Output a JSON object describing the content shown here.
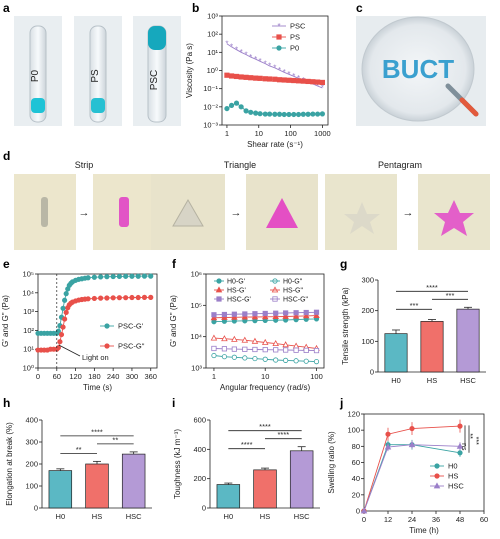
{
  "panel_labels": [
    "a",
    "b",
    "c",
    "d",
    "e",
    "f",
    "g",
    "h",
    "i",
    "j"
  ],
  "photo_a": {
    "vials": [
      "P0",
      "PS",
      "PSC"
    ]
  },
  "photo_c": {
    "text": "BUCT"
  },
  "photo_d": {
    "shapes": [
      "Strip",
      "Triangle",
      "Pentagram"
    ]
  },
  "chart_data": [
    {
      "panel": "b",
      "type": "line",
      "xlabel": "Shear rate (s⁻¹)",
      "ylabel": "Viscosity (Pa s)",
      "xscale": "log",
      "yscale": "log",
      "xlim": [
        0.7,
        1500
      ],
      "ylim": [
        0.001,
        1000
      ],
      "xticks": [
        1,
        10,
        100,
        1000
      ],
      "xtick_labels": [
        "1",
        "10",
        "100",
        "1000"
      ],
      "yticks": [
        0.001,
        0.01,
        0.1,
        1,
        10,
        100,
        1000
      ],
      "ytick_labels": [
        "10⁻³",
        "10⁻²",
        "10⁻¹",
        "10⁰",
        "10¹",
        "10²",
        "10³"
      ],
      "legend": "top-right",
      "series": [
        {
          "name": "PSC",
          "color": "#9b7fc9",
          "marker": "star",
          "x": [
            1,
            1.4,
            2,
            2.8,
            4,
            5.6,
            8,
            11,
            16,
            22,
            32,
            45,
            63,
            89,
            126,
            178,
            251,
            355,
            501,
            708,
            1000
          ],
          "y": [
            30,
            20,
            14,
            10,
            7.5,
            5.5,
            4.2,
            3.2,
            2.4,
            1.8,
            1.4,
            1.05,
            0.8,
            0.62,
            0.48,
            0.37,
            0.29,
            0.23,
            0.18,
            0.14,
            0.11
          ]
        },
        {
          "name": "PS",
          "color": "#e8504a",
          "marker": "square",
          "x": [
            1,
            1.4,
            2,
            2.8,
            4,
            5.6,
            8,
            11,
            16,
            22,
            32,
            45,
            63,
            89,
            126,
            178,
            251,
            355,
            501,
            708,
            1000
          ],
          "y": [
            0.55,
            0.5,
            0.47,
            0.44,
            0.42,
            0.4,
            0.38,
            0.37,
            0.35,
            0.34,
            0.33,
            0.31,
            0.3,
            0.29,
            0.28,
            0.27,
            0.26,
            0.25,
            0.24,
            0.23,
            0.22
          ]
        },
        {
          "name": "P0",
          "color": "#3aa3a3",
          "marker": "circle",
          "x": [
            1,
            1.4,
            2,
            2.8,
            4,
            5.6,
            8,
            11,
            16,
            22,
            32,
            45,
            63,
            89,
            126,
            178,
            251,
            355,
            501,
            708,
            1000
          ],
          "y": [
            0.008,
            0.012,
            0.016,
            0.01,
            0.006,
            0.005,
            0.0045,
            0.0042,
            0.004,
            0.004,
            0.0039,
            0.0039,
            0.0038,
            0.0038,
            0.0038,
            0.0038,
            0.0039,
            0.0039,
            0.004,
            0.004,
            0.0041
          ]
        }
      ]
    },
    {
      "panel": "e",
      "type": "line",
      "xlabel": "Time (s)",
      "ylabel": "G' and G\" (Pa)",
      "yscale": "log",
      "xlim": [
        0,
        380
      ],
      "ylim": [
        1,
        100000
      ],
      "xticks": [
        0,
        60,
        120,
        180,
        240,
        300,
        360
      ],
      "yticks": [
        1,
        10,
        100,
        1000,
        10000,
        100000
      ],
      "ytick_labels": [
        "10⁰",
        "10¹",
        "10²",
        "10³",
        "10⁴",
        "10⁵"
      ],
      "legend": "right",
      "annotation": "Light on",
      "annotation_x": 60,
      "series": [
        {
          "name": "PSC-G'",
          "color": "#3aa3a3",
          "marker": "circle",
          "x": [
            0,
            10,
            20,
            30,
            40,
            50,
            60,
            65,
            70,
            75,
            80,
            85,
            90,
            95,
            100,
            105,
            110,
            120,
            130,
            140,
            150,
            160,
            180,
            200,
            220,
            240,
            260,
            280,
            300,
            320,
            340,
            360
          ],
          "y": [
            70,
            70,
            70,
            70,
            70,
            70,
            70,
            90,
            180,
            500,
            1500,
            4000,
            9000,
            16000,
            25000,
            32000,
            38000,
            46000,
            52000,
            56000,
            60000,
            63000,
            67000,
            70000,
            72000,
            73000,
            74000,
            75000,
            76000,
            76000,
            77000,
            77000
          ]
        },
        {
          "name": "PSC-G\"",
          "color": "#e8504a",
          "marker": "circle",
          "x": [
            0,
            10,
            20,
            30,
            40,
            50,
            60,
            65,
            70,
            75,
            80,
            85,
            90,
            95,
            100,
            105,
            110,
            120,
            130,
            140,
            150,
            160,
            180,
            200,
            220,
            240,
            260,
            280,
            300,
            320,
            340,
            360
          ],
          "y": [
            9,
            9,
            9,
            9,
            10,
            10,
            10,
            12,
            25,
            60,
            150,
            400,
            900,
            1600,
            2300,
            2800,
            3200,
            3700,
            4100,
            4400,
            4600,
            4800,
            5000,
            5200,
            5300,
            5400,
            5500,
            5500,
            5600,
            5600,
            5700,
            5700
          ]
        }
      ]
    },
    {
      "panel": "f",
      "type": "line",
      "xlabel": "Angular frequency (rad/s)",
      "ylabel": "G' and G\" (Pa)",
      "xscale": "log",
      "yscale": "log",
      "xlim": [
        0.7,
        140
      ],
      "ylim": [
        1000,
        1000000
      ],
      "xticks": [
        1,
        10,
        100
      ],
      "yticks": [
        1000,
        10000,
        100000,
        1000000
      ],
      "ytick_labels": [
        "10³",
        "10⁴",
        "10⁵",
        "10⁶"
      ],
      "legend": "top",
      "series": [
        {
          "name": "H0-G'",
          "color": "#3aa3a3",
          "marker": "circle",
          "x": [
            1,
            1.6,
            2.5,
            4,
            6.3,
            10,
            16,
            25,
            40,
            63,
            100
          ],
          "y": [
            30000,
            31000,
            31500,
            32000,
            32500,
            33000,
            33500,
            34000,
            35000,
            36000,
            37000
          ]
        },
        {
          "name": "HS-G'",
          "color": "#e8504a",
          "marker": "triangle",
          "x": [
            1,
            1.6,
            2.5,
            4,
            6.3,
            10,
            16,
            25,
            40,
            63,
            100
          ],
          "y": [
            40000,
            41000,
            41500,
            42000,
            42500,
            43000,
            43500,
            44000,
            45000,
            46000,
            47000
          ]
        },
        {
          "name": "HSC-G'",
          "color": "#9b7fc9",
          "marker": "square",
          "x": [
            1,
            1.6,
            2.5,
            4,
            6.3,
            10,
            16,
            25,
            40,
            63,
            100
          ],
          "y": [
            50000,
            51000,
            52000,
            53000,
            54000,
            55000,
            56000,
            57000,
            58000,
            59000,
            60000
          ]
        },
        {
          "name": "H0-G\"",
          "color": "#3aa3a3",
          "marker": "circle-open",
          "x": [
            1,
            1.6,
            2.5,
            4,
            6.3,
            10,
            16,
            25,
            40,
            63,
            100
          ],
          "y": [
            2500,
            2300,
            2200,
            2100,
            2000,
            1900,
            1800,
            1750,
            1700,
            1650,
            1600
          ]
        },
        {
          "name": "HS-G\"",
          "color": "#e8504a",
          "marker": "triangle-open",
          "x": [
            1,
            1.6,
            2.5,
            4,
            6.3,
            10,
            16,
            25,
            40,
            63,
            100
          ],
          "y": [
            9000,
            8600,
            8200,
            7700,
            7100,
            6500,
            6000,
            5500,
            5000,
            4600,
            4200
          ]
        },
        {
          "name": "HSC-G\"",
          "color": "#9b7fc9",
          "marker": "square-open",
          "x": [
            1,
            1.6,
            2.5,
            4,
            6.3,
            10,
            16,
            25,
            40,
            63,
            100
          ],
          "y": [
            4200,
            4100,
            4000,
            3950,
            3900,
            3850,
            3800,
            3750,
            3700,
            3650,
            3600
          ]
        }
      ]
    },
    {
      "panel": "g",
      "type": "bar",
      "ylabel": "Tensile strength (kPa)",
      "ylim": [
        0,
        300
      ],
      "yticks": [
        0,
        100,
        200,
        300
      ],
      "categories": [
        "H0",
        "HS",
        "HSC"
      ],
      "values": [
        125,
        165,
        205
      ],
      "errors": [
        12,
        6,
        6
      ],
      "colors": [
        "#5bb8c4",
        "#f0706a",
        "#b49ad6"
      ],
      "significance": [
        {
          "from": 0,
          "to": 1,
          "label": "***"
        },
        {
          "from": 1,
          "to": 2,
          "label": "***"
        },
        {
          "from": 0,
          "to": 2,
          "label": "****"
        }
      ]
    },
    {
      "panel": "h",
      "type": "bar",
      "ylabel": "Elongation at break (%)",
      "ylim": [
        0,
        400
      ],
      "yticks": [
        0,
        100,
        200,
        300,
        400
      ],
      "categories": [
        "H0",
        "HS",
        "HSC"
      ],
      "values": [
        170,
        200,
        245
      ],
      "errors": [
        8,
        12,
        10
      ],
      "colors": [
        "#5bb8c4",
        "#f0706a",
        "#b49ad6"
      ],
      "significance": [
        {
          "from": 0,
          "to": 1,
          "label": "**"
        },
        {
          "from": 1,
          "to": 2,
          "label": "**"
        },
        {
          "from": 0,
          "to": 2,
          "label": "****"
        }
      ]
    },
    {
      "panel": "i",
      "type": "bar",
      "ylabel": "Toughness (kJ m⁻³)",
      "ylim": [
        0,
        600
      ],
      "yticks": [
        0,
        200,
        400,
        600
      ],
      "categories": [
        "H0",
        "HS",
        "HSC"
      ],
      "values": [
        160,
        260,
        390
      ],
      "errors": [
        10,
        12,
        28
      ],
      "colors": [
        "#5bb8c4",
        "#f0706a",
        "#b49ad6"
      ],
      "significance": [
        {
          "from": 0,
          "to": 1,
          "label": "****"
        },
        {
          "from": 1,
          "to": 2,
          "label": "****"
        },
        {
          "from": 0,
          "to": 2,
          "label": "****"
        }
      ]
    },
    {
      "panel": "j",
      "type": "line",
      "xlabel": "Time (h)",
      "ylabel": "Swelling ratio (%)",
      "xlim": [
        0,
        60
      ],
      "ylim": [
        0,
        120
      ],
      "xticks": [
        0,
        12,
        24,
        36,
        48,
        60
      ],
      "yticks": [
        0,
        20,
        40,
        60,
        80,
        100,
        120
      ],
      "legend": "bottom-right",
      "significance": [
        {
          "label": "***"
        },
        {
          "label": "**"
        },
        {
          "label": "ns"
        }
      ],
      "series": [
        {
          "name": "H0",
          "color": "#3aa3a3",
          "marker": "circle",
          "x": [
            0,
            12,
            24,
            48
          ],
          "y": [
            0,
            82,
            82,
            72
          ],
          "errors": [
            0,
            5,
            6,
            5
          ]
        },
        {
          "name": "HS",
          "color": "#e8504a",
          "marker": "circle",
          "x": [
            0,
            12,
            24,
            48
          ],
          "y": [
            0,
            95,
            102,
            105
          ],
          "errors": [
            0,
            8,
            8,
            8
          ]
        },
        {
          "name": "HSC",
          "color": "#9b7fc9",
          "marker": "triangle",
          "x": [
            0,
            12,
            24,
            48
          ],
          "y": [
            0,
            79,
            82,
            80
          ],
          "errors": [
            0,
            5,
            5,
            5
          ]
        }
      ]
    }
  ]
}
